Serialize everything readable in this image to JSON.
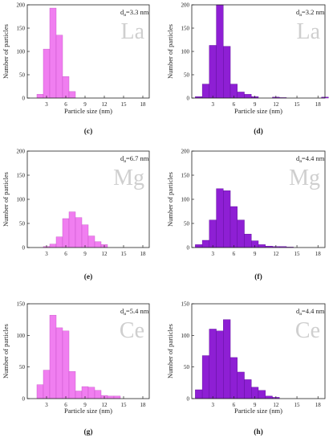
{
  "colors": {
    "pink_fill": "#f07ef0",
    "pink_edge": "#c24ec4",
    "purple_fill": "#8e1fd4",
    "purple_edge": "#5a0b96",
    "element_label": "#cfcfcf",
    "axis": "#222222"
  },
  "chart_data": [
    {
      "id": "a",
      "panel_label": "",
      "type": "bar",
      "element": "La",
      "element_label": "La",
      "d_label": "dₐ=3.3 nm",
      "d_main": "d",
      "d_sub": "a",
      "d_rest": "=3.3 nm",
      "xlabel": "Particle size (nm)",
      "ylabel": "Number of particles",
      "xlim": [
        0,
        19
      ],
      "ylim": [
        0,
        200
      ],
      "xticks": [
        3,
        6,
        9,
        12,
        15,
        18
      ],
      "xtick_labels": [
        "3",
        "6",
        "9",
        "12",
        "15",
        "18"
      ],
      "yticks": [
        0,
        50,
        100,
        150,
        200
      ],
      "ytick_labels": [
        "0",
        "50",
        "100",
        "150",
        "200"
      ],
      "bin_width": 1,
      "bar_color": "pink",
      "bins": [
        1,
        2,
        3,
        4,
        5,
        6
      ],
      "values": [
        8,
        105,
        193,
        135,
        46,
        14
      ]
    },
    {
      "id": "b",
      "panel_label": "",
      "type": "bar",
      "element": "La",
      "element_label": "La",
      "d_label": "dₐ=3.2 nm",
      "d_main": "d",
      "d_sub": "a",
      "d_rest": "=3.2 nm",
      "xlabel": "Particle size (nm)",
      "ylabel": "Number of particles",
      "xlim": [
        0,
        19
      ],
      "ylim": [
        0,
        200
      ],
      "xticks": [
        3,
        6,
        9,
        12,
        15,
        18
      ],
      "xtick_labels": [
        "3",
        "6",
        "9",
        "12",
        "15",
        "18"
      ],
      "yticks": [
        0,
        50,
        100,
        150,
        200
      ],
      "ytick_labels": [
        "0",
        "50",
        "100",
        "150",
        "200"
      ],
      "bin_width": 1,
      "bar_color": "purple",
      "bins": [
        0,
        1,
        2,
        3,
        4,
        5,
        6,
        7,
        8,
        11,
        12,
        18
      ],
      "values": [
        3,
        30,
        113,
        200,
        111,
        30,
        13,
        8,
        3,
        2,
        1,
        2
      ]
    },
    {
      "id": "c",
      "panel_label": "(c)",
      "type": "bar",
      "element": "Mg",
      "element_label": "Mg",
      "d_label": "dₐ=6.7 nm",
      "d_main": "d",
      "d_sub": "a",
      "d_rest": "=6.7 nm",
      "xlabel": "",
      "ylabel": "Number of particles",
      "xlim": [
        0,
        19
      ],
      "ylim": [
        0,
        200
      ],
      "xticks": [
        3,
        6,
        9,
        12,
        15,
        18
      ],
      "xtick_labels": [
        "3",
        "6",
        "9",
        "12",
        "15",
        "18"
      ],
      "yticks": [
        0,
        50,
        100,
        150,
        200
      ],
      "ytick_labels": [
        "0",
        "50",
        "100",
        "150",
        "200"
      ],
      "bin_width": 1,
      "bar_color": "pink",
      "bins": [
        2,
        3,
        4,
        5,
        6,
        7,
        8,
        9,
        10,
        11
      ],
      "values": [
        2,
        7,
        22,
        60,
        74,
        62,
        47,
        24,
        12,
        6
      ]
    },
    {
      "id": "d",
      "panel_label": "(d)",
      "type": "bar",
      "element": "Mg",
      "element_label": "Mg",
      "d_label": "dₐ=4.4 nm",
      "d_main": "d",
      "d_sub": "a",
      "d_rest": "=4.4 nm",
      "xlabel": "",
      "ylabel": "Number of particles",
      "xlim": [
        0,
        19
      ],
      "ylim": [
        0,
        200
      ],
      "xticks": [
        3,
        6,
        9,
        12,
        15,
        18
      ],
      "xtick_labels": [
        "3",
        "6",
        "9",
        "12",
        "15",
        "18"
      ],
      "yticks": [
        0,
        50,
        100,
        150,
        200
      ],
      "ytick_labels": [
        "0",
        "50",
        "100",
        "150",
        "200"
      ],
      "bin_width": 1,
      "bar_color": "purple",
      "bins": [
        0,
        1,
        2,
        3,
        4,
        5,
        6,
        7,
        8,
        9,
        10,
        11,
        12,
        13
      ],
      "values": [
        6,
        15,
        57,
        122,
        118,
        85,
        57,
        28,
        14,
        6,
        3,
        2,
        2,
        1
      ]
    },
    {
      "id": "e",
      "panel_label": "(e)",
      "type": "bar",
      "element": "Ce",
      "element_label": "Ce",
      "d_label": "dₐ=5.4 nm",
      "d_main": "d",
      "d_sub": "a",
      "d_rest": "=5.4 nm",
      "xlabel": "",
      "ylabel": "Number of particles",
      "xlim": [
        0,
        19
      ],
      "ylim": [
        0,
        150
      ],
      "xticks": [
        3,
        6,
        9,
        12,
        15,
        18
      ],
      "xtick_labels": [
        "3",
        "6",
        "9",
        "12",
        "15",
        "18"
      ],
      "yticks": [
        0,
        50,
        100,
        150
      ],
      "ytick_labels": [
        "0",
        "50",
        "100",
        "150"
      ],
      "bin_width": 1,
      "bar_color": "pink",
      "bins": [
        1,
        2,
        3,
        4,
        5,
        6,
        7,
        8,
        9,
        10,
        11,
        12,
        13
      ],
      "values": [
        22,
        45,
        132,
        112,
        107,
        43,
        12,
        19,
        18,
        13,
        5,
        4,
        4
      ]
    },
    {
      "id": "f",
      "panel_label": "(f)",
      "type": "bar",
      "element": "Ce",
      "element_label": "Ce",
      "d_label": "dₐ=4.4 nm",
      "d_main": "d",
      "d_sub": "a",
      "d_rest": "=4.4 nm",
      "xlabel": "",
      "ylabel": "Number of particles",
      "xlim": [
        0,
        19
      ],
      "ylim": [
        0,
        150
      ],
      "xticks": [
        3,
        6,
        9,
        12,
        15,
        18
      ],
      "xtick_labels": [
        "3",
        "6",
        "9",
        "12",
        "15",
        "18"
      ],
      "yticks": [
        0,
        50,
        100,
        150
      ],
      "ytick_labels": [
        "0",
        "50",
        "100",
        "150"
      ],
      "bin_width": 1,
      "bar_color": "purple",
      "bins": [
        0,
        1,
        2,
        3,
        4,
        5,
        6,
        7,
        8,
        9,
        10,
        11
      ],
      "values": [
        14,
        68,
        110,
        107,
        125,
        65,
        42,
        30,
        18,
        13,
        4,
        2
      ]
    }
  ],
  "bottom_labels": {
    "g": "(g)",
    "h": "(h)"
  },
  "panels_xlabel_shown": {
    "a": "Particle size (nm)",
    "b": "Particle size (nm)",
    "c": "",
    "d": "",
    "e": "",
    "f": "",
    "g": "Particle size (nm)",
    "h": "Particle size (nm)"
  }
}
